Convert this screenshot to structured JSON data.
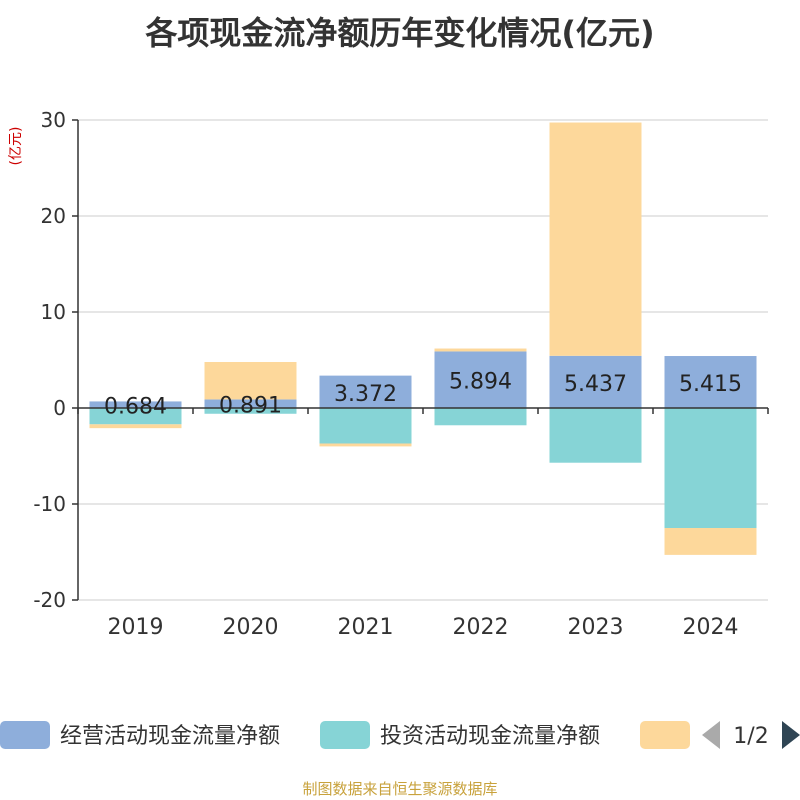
{
  "chart_data": {
    "type": "bar",
    "stacked": true,
    "title": "各项现金流净额历年变化情况(亿元)",
    "ylabel": "(亿元)",
    "categories": [
      "2019",
      "2020",
      "2021",
      "2022",
      "2023",
      "2024"
    ],
    "ylim": [
      -20,
      30
    ],
    "yticks": [
      30,
      20,
      10,
      0,
      -10,
      -20
    ],
    "grid": true,
    "series": [
      {
        "name": "经营活动现金流量净额",
        "color": "#8eaedb",
        "values": [
          0.684,
          0.891,
          3.372,
          5.894,
          5.437,
          5.415
        ],
        "data_labels": [
          "0.684",
          "0.891",
          "3.372",
          "5.894",
          "5.437",
          "5.415"
        ]
      },
      {
        "name": "投资活动现金流量净额",
        "color": "#86d4d6",
        "values": [
          -1.7,
          -0.6,
          -3.7,
          -1.8,
          -5.7,
          -12.5
        ]
      },
      {
        "color": "#fdd89b",
        "values": [
          -0.4,
          3.9,
          -0.3,
          0.3,
          24.3,
          -2.8
        ]
      }
    ],
    "legend": {
      "position": "bottom",
      "page": "1/2"
    }
  },
  "source": "制图数据来自恒生聚源数据库"
}
